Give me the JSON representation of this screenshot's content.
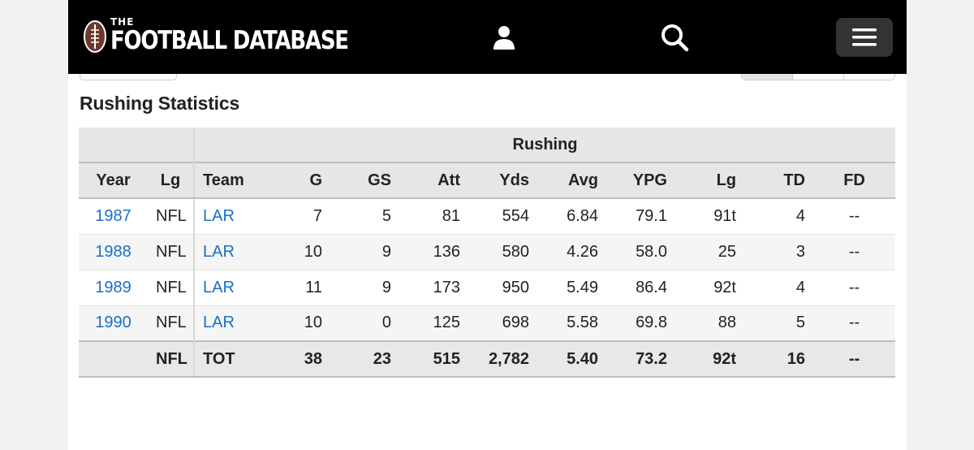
{
  "header": {
    "logo_small": "THE",
    "logo_main": "FOOTBALL DATABASE",
    "icons": {
      "user": "user-icon",
      "search": "search-icon",
      "menu": "hamburger-menu-icon"
    },
    "colors": {
      "background": "#000000",
      "menu_button": "#333333"
    }
  },
  "section": {
    "title": "Rushing Statistics"
  },
  "table": {
    "group_header": "Rushing",
    "columns": [
      "Year",
      "Lg",
      "Team",
      "G",
      "GS",
      "Att",
      "Yds",
      "Avg",
      "YPG",
      "Lg",
      "TD",
      "FD"
    ],
    "rows": [
      [
        "1987",
        "NFL",
        "LAR",
        "7",
        "5",
        "81",
        "554",
        "6.84",
        "79.1",
        "91t",
        "4",
        "--"
      ],
      [
        "1988",
        "NFL",
        "LAR",
        "10",
        "9",
        "136",
        "580",
        "4.26",
        "58.0",
        "25",
        "3",
        "--"
      ],
      [
        "1989",
        "NFL",
        "LAR",
        "11",
        "9",
        "173",
        "950",
        "5.49",
        "86.4",
        "92t",
        "4",
        "--"
      ],
      [
        "1990",
        "NFL",
        "LAR",
        "10",
        "0",
        "125",
        "698",
        "5.58",
        "69.8",
        "88",
        "5",
        "--"
      ]
    ],
    "total": [
      "",
      "NFL",
      "TOT",
      "38",
      "23",
      "515",
      "2,782",
      "5.40",
      "73.2",
      "92t",
      "16",
      "--"
    ]
  },
  "colors": {
    "link": "#1a6fc9",
    "header_bg": "#e6e6e6",
    "row_alt": "#f5f5f5"
  }
}
